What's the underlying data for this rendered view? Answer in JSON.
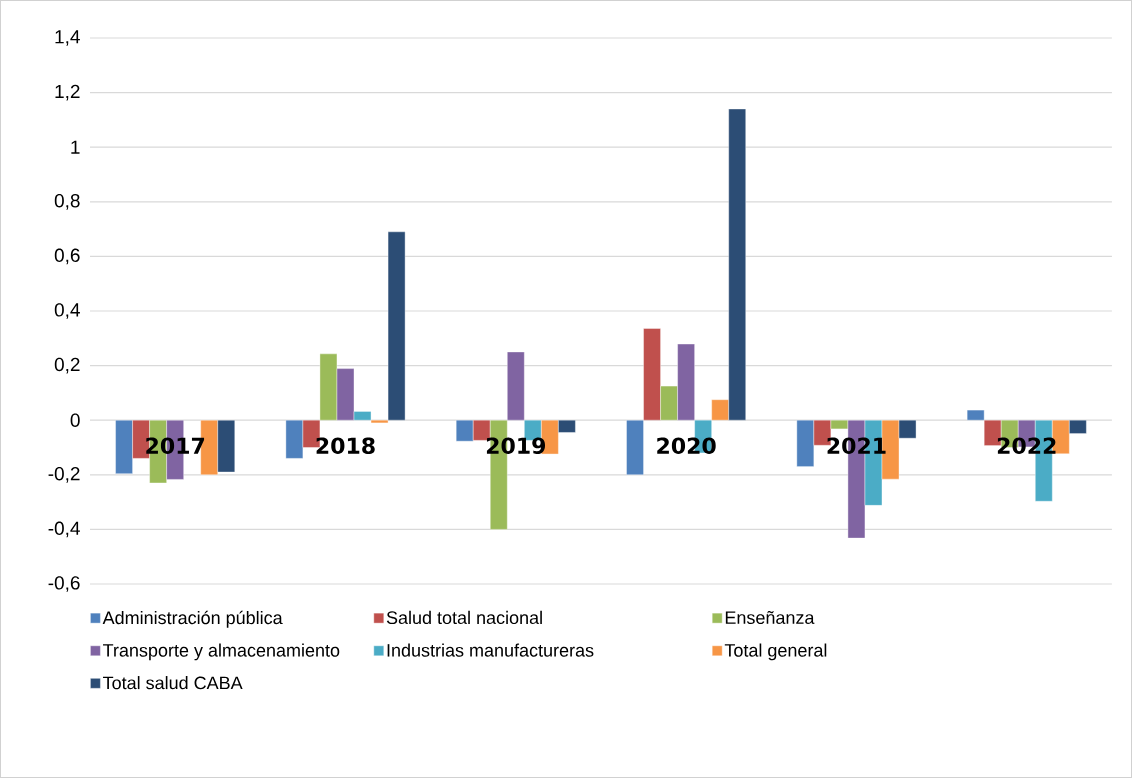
{
  "chart_data": {
    "type": "bar",
    "categories": [
      "2017",
      "2018",
      "2019",
      "2020",
      "2021",
      "2022"
    ],
    "series": [
      {
        "name": "Administración pública",
        "color": "#4f81bd",
        "values": [
          -0.196,
          -0.14,
          -0.077,
          -0.2,
          -0.17,
          0.037
        ]
      },
      {
        "name": "Salud total nacional",
        "color": "#c0504d",
        "values": [
          -0.14,
          -0.1,
          -0.074,
          0.336,
          -0.092,
          -0.093
        ]
      },
      {
        "name": "Enseñanza",
        "color": "#9bbb59",
        "values": [
          -0.23,
          0.243,
          -0.4,
          0.125,
          -0.032,
          -0.1
        ]
      },
      {
        "name": "Transporte y almacenamiento",
        "color": "#8064a2",
        "values": [
          -0.217,
          0.189,
          0.25,
          0.279,
          -0.432,
          -0.098
        ]
      },
      {
        "name": "Industrias manufactureras",
        "color": "#4bacc6",
        "values": [
          null,
          0.032,
          -0.074,
          -0.12,
          -0.312,
          -0.297
        ]
      },
      {
        "name": "Total general",
        "color": "#f79646",
        "values": [
          -0.2,
          -0.01,
          -0.124,
          0.075,
          -0.216,
          -0.123
        ]
      },
      {
        "name": "Total salud CABA",
        "color": "#2c4d75",
        "values": [
          -0.19,
          0.69,
          -0.045,
          1.14,
          -0.066,
          -0.049
        ]
      }
    ],
    "ylim": [
      -0.6,
      1.4
    ],
    "yticks": [
      {
        "value": -0.6,
        "label": "-0,6"
      },
      {
        "value": -0.4,
        "label": "-0,4"
      },
      {
        "value": -0.2,
        "label": "-0,2"
      },
      0,
      {
        "value": 0.2,
        "label": "0,2"
      },
      {
        "value": 0.4,
        "label": "0,4"
      },
      {
        "value": 0.6,
        "label": "0,6"
      },
      {
        "value": 0.8,
        "label": "0,8"
      },
      1,
      {
        "value": 1.2,
        "label": "1,2"
      },
      {
        "value": 1.4,
        "label": "1,4"
      }
    ],
    "grid": "y",
    "legend": "bottom"
  }
}
